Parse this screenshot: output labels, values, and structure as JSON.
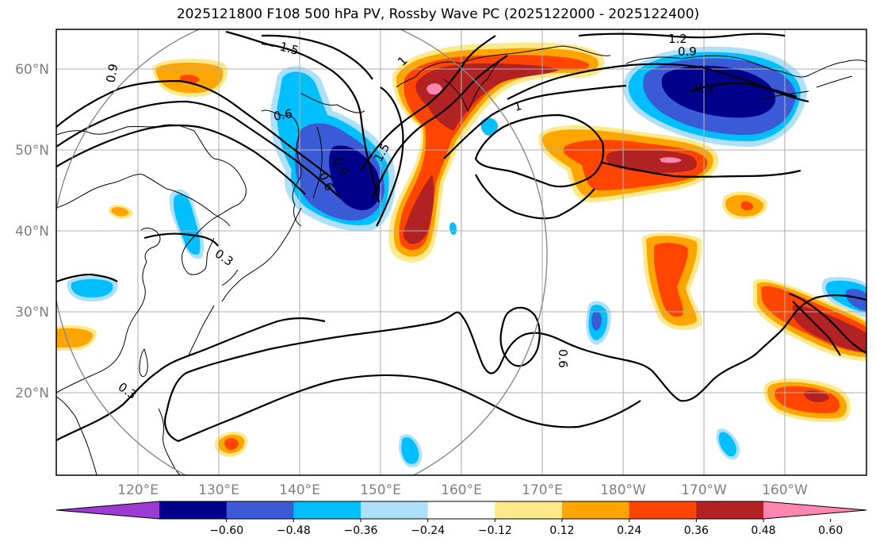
{
  "title": "2025121800 F108 500 hPa PV, Rossby Wave PC (2025122000 - 2025122400)",
  "map": {
    "lon_labels": [
      "120°E",
      "130°E",
      "140°E",
      "150°E",
      "160°E",
      "170°E",
      "180°W",
      "170°W",
      "160°W"
    ],
    "lat_labels": [
      "60°N",
      "50°N",
      "40°N",
      "30°N",
      "20°N"
    ],
    "contour_labels": [
      "1.5",
      "1.2",
      "0.9",
      "0.3",
      "0.6",
      "1",
      "1.5",
      "0.6",
      "0.6",
      "0.3",
      "0.9",
      "0.3",
      "0.9",
      "1"
    ]
  },
  "colorbar": {
    "ticks": [
      "−0.60",
      "−0.48",
      "−0.36",
      "−0.24",
      "−0.12",
      "0.12",
      "0.24",
      "0.36",
      "0.48",
      "0.60"
    ],
    "colors": [
      "#9b3bd1",
      "#00008b",
      "#3b5bd6",
      "#00bfff",
      "#aee0fa",
      "#ffffff",
      "#fde88a",
      "#ffa500",
      "#ff4500",
      "#b22222",
      "#ff86b0"
    ]
  }
}
